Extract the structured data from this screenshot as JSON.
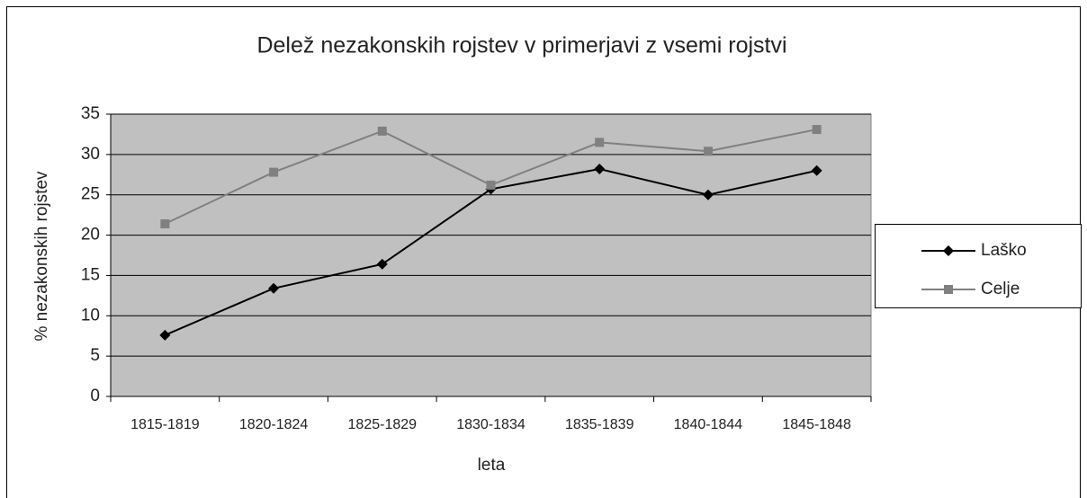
{
  "chart_data": {
    "type": "line",
    "title": "Delež nezakonskih rojstev v primerjavi z vsemi rojstvi",
    "xlabel": "leta",
    "ylabel": "% nezakonskih rojstev",
    "categories": [
      "1815-1819",
      "1820-1824",
      "1825-1829",
      "1830-1834",
      "1835-1839",
      "1840-1844",
      "1845-1848"
    ],
    "series": [
      {
        "name": "Laško",
        "color": "#000000",
        "marker": "diamond",
        "values": [
          7.6,
          13.4,
          16.4,
          25.7,
          28.2,
          25.0,
          28.0
        ]
      },
      {
        "name": "Celje",
        "color": "#808080",
        "marker": "square",
        "values": [
          21.4,
          27.8,
          32.9,
          26.2,
          31.5,
          30.4,
          33.1
        ]
      }
    ],
    "ylim": [
      0,
      35
    ],
    "yticks": [
      0,
      5,
      10,
      15,
      20,
      25,
      30,
      35
    ],
    "grid": true,
    "legend": "right"
  }
}
